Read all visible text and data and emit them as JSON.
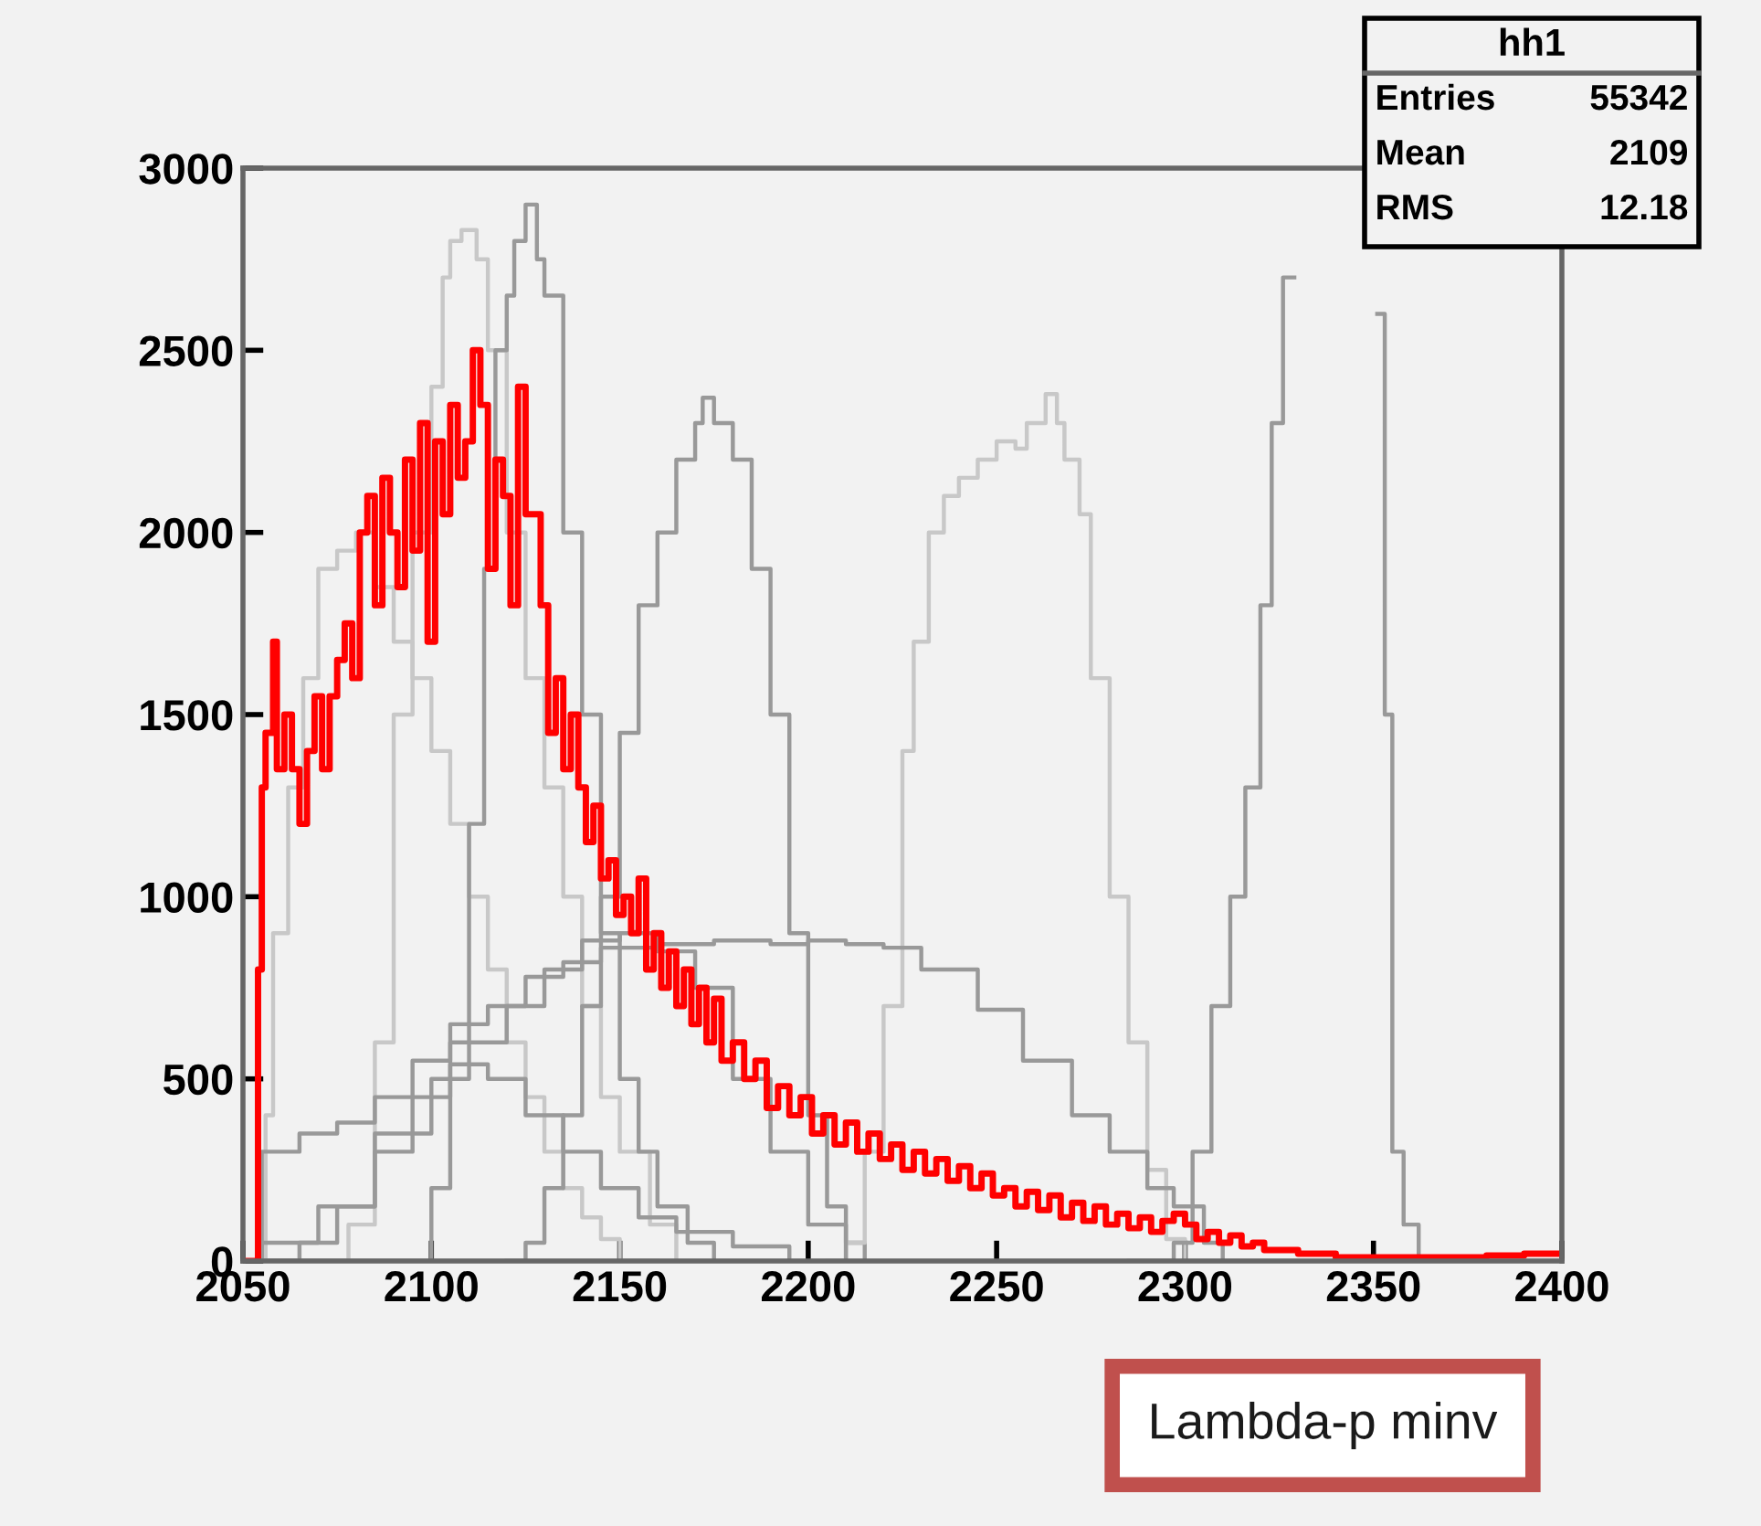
{
  "chart_data": {
    "type": "step",
    "xlim": [
      2050,
      2400
    ],
    "xticks": [
      2050,
      2100,
      2150,
      2200,
      2250,
      2300,
      2350,
      2400
    ],
    "ylim": [
      0,
      3000
    ],
    "yticks": [
      0,
      500,
      1000,
      1500,
      2000,
      2500,
      3000
    ],
    "grid": false,
    "legend": false,
    "annotations": [
      "hh1",
      "Entries 55342",
      "Mean 2109",
      "RMS 12.18",
      "Lambda-p minv"
    ],
    "series": [
      {
        "color": "#c8c8c8",
        "x": [
          2050,
          2054,
          2056,
          2058,
          2062,
          2066,
          2070,
          2075,
          2080,
          2085,
          2090,
          2095,
          2100,
          2105,
          2110,
          2115,
          2120,
          2125,
          2130,
          2135,
          2140,
          2145,
          2150,
          2160
        ],
        "values": [
          0,
          0,
          400,
          900,
          1300,
          1600,
          1900,
          1950,
          2000,
          1850,
          1700,
          1600,
          1400,
          1200,
          1000,
          800,
          600,
          450,
          300,
          200,
          120,
          60,
          0,
          0
        ]
      },
      {
        "color": "#c8c8c8",
        "x": [
          2050,
          2070,
          2078,
          2085,
          2090,
          2095,
          2100,
          2103,
          2105,
          2108,
          2112,
          2115,
          2120,
          2125,
          2130,
          2135,
          2140,
          2145,
          2150,
          2158,
          2165
        ],
        "values": [
          0,
          0,
          100,
          600,
          1500,
          2000,
          2400,
          2700,
          2800,
          2830,
          2750,
          2500,
          2000,
          1600,
          1300,
          1000,
          700,
          450,
          300,
          100,
          0
        ]
      },
      {
        "color": "#999999",
        "x": [
          2050,
          2095,
          2100,
          2105,
          2110,
          2114,
          2117,
          2120,
          2122,
          2125,
          2128,
          2130,
          2135,
          2140,
          2145,
          2150,
          2155,
          2160,
          2168,
          2175
        ],
        "values": [
          0,
          0,
          200,
          600,
          1200,
          1900,
          2500,
          2650,
          2800,
          2900,
          2750,
          2650,
          2000,
          1500,
          900,
          500,
          300,
          150,
          50,
          0
        ]
      },
      {
        "color": "#999999",
        "x": [
          2120,
          2125,
          2130,
          2135,
          2140,
          2145,
          2150,
          2155,
          2160,
          2165,
          2170,
          2172,
          2175,
          2180,
          2185,
          2190,
          2195,
          2200,
          2205,
          2210,
          2215
        ],
        "values": [
          0,
          50,
          200,
          400,
          700,
          1000,
          1450,
          1800,
          2000,
          2200,
          2300,
          2370,
          2300,
          2200,
          1900,
          1500,
          900,
          400,
          150,
          50,
          0
        ]
      },
      {
        "color": "#c8c8c8",
        "x": [
          2205,
          2210,
          2215,
          2220,
          2225,
          2228,
          2232,
          2236,
          2240,
          2245,
          2250,
          2255,
          2258,
          2263,
          2266,
          2268,
          2272,
          2275,
          2280,
          2285,
          2290,
          2295,
          2300
        ],
        "values": [
          0,
          50,
          300,
          700,
          1400,
          1700,
          2000,
          2100,
          2150,
          2200,
          2250,
          2230,
          2300,
          2380,
          2300,
          2200,
          2050,
          1600,
          1000,
          600,
          250,
          60,
          0
        ]
      },
      {
        "color": "#999999",
        "x": [
          2285,
          2290,
          2297,
          2302,
          2307,
          2312,
          2316,
          2320,
          2323,
          2326,
          2329,
          2351,
          2353,
          2355,
          2358,
          2362,
          2400
        ],
        "values": [
          0,
          0,
          50,
          300,
          700,
          1000,
          1300,
          1800,
          2300,
          2700,
          null,
          2600,
          1500,
          300,
          100,
          0,
          0
        ]
      },
      {
        "color": "#999999",
        "x": [
          2050,
          2053,
          2055,
          2065,
          2075,
          2085,
          2095,
          2105,
          2115,
          2125,
          2135,
          2145,
          2160,
          2175,
          2190,
          2200,
          2210,
          2220,
          2230,
          2245,
          2257,
          2270,
          2280,
          2290,
          2297,
          2305,
          2310
        ],
        "values": [
          0,
          0,
          300,
          350,
          380,
          450,
          550,
          650,
          700,
          780,
          820,
          860,
          870,
          880,
          870,
          880,
          870,
          860,
          800,
          690,
          550,
          400,
          300,
          200,
          150,
          50,
          0
        ]
      },
      {
        "color": "#999999",
        "x": [
          2050,
          2055,
          2070,
          2085,
          2100,
          2110,
          2120,
          2130,
          2140,
          2150,
          2160,
          2170,
          2180,
          2190,
          2200,
          2210
        ],
        "values": [
          0,
          50,
          150,
          350,
          500,
          600,
          700,
          800,
          880,
          900,
          850,
          750,
          500,
          300,
          100,
          0
        ]
      },
      {
        "color": "#999999",
        "x": [
          2050,
          2055,
          2065,
          2075,
          2085,
          2095,
          2105,
          2115,
          2125,
          2135,
          2145,
          2155,
          2165,
          2180,
          2195
        ],
        "values": [
          0,
          0,
          50,
          150,
          300,
          450,
          540,
          500,
          400,
          300,
          200,
          120,
          80,
          40,
          0
        ]
      },
      {
        "color": "#ff0000",
        "x": [
          2050,
          2053,
          2054,
          2055,
          2056,
          2058,
          2059,
          2061,
          2063,
          2065,
          2067,
          2069,
          2071,
          2073,
          2075,
          2077,
          2079,
          2081,
          2083,
          2085,
          2087,
          2089,
          2091,
          2093,
          2095,
          2097,
          2099,
          2101,
          2103,
          2105,
          2107,
          2109,
          2111,
          2113,
          2115,
          2117,
          2119,
          2121,
          2123,
          2125,
          2127,
          2129,
          2131,
          2133,
          2135,
          2137,
          2139,
          2141,
          2143,
          2145,
          2147,
          2149,
          2151,
          2153,
          2155,
          2157,
          2159,
          2161,
          2163,
          2165,
          2167,
          2169,
          2171,
          2173,
          2175,
          2177,
          2180,
          2183,
          2186,
          2189,
          2192,
          2195,
          2198,
          2201,
          2204,
          2207,
          2210,
          2213,
          2216,
          2219,
          2222,
          2225,
          2228,
          2231,
          2234,
          2237,
          2240,
          2243,
          2246,
          2249,
          2252,
          2255,
          2258,
          2261,
          2264,
          2267,
          2270,
          2273,
          2276,
          2279,
          2282,
          2285,
          2288,
          2291,
          2294,
          2297,
          2300,
          2303,
          2306,
          2309,
          2312,
          2315,
          2318,
          2321,
          2325,
          2330,
          2340,
          2350,
          2360,
          2370,
          2380,
          2390,
          2400
        ],
        "values": [
          0,
          0,
          800,
          1300,
          1450,
          1700,
          1350,
          1500,
          1350,
          1200,
          1400,
          1550,
          1350,
          1550,
          1650,
          1750,
          1600,
          2000,
          2100,
          1800,
          2150,
          2000,
          1850,
          2200,
          1950,
          2300,
          1700,
          2250,
          2050,
          2350,
          2150,
          2250,
          2500,
          2350,
          1900,
          2200,
          2100,
          1800,
          2400,
          2050,
          2050,
          1800,
          1450,
          1600,
          1350,
          1500,
          1300,
          1150,
          1250,
          1050,
          1100,
          950,
          1000,
          900,
          1050,
          800,
          900,
          750,
          850,
          700,
          800,
          650,
          750,
          600,
          720,
          550,
          600,
          500,
          550,
          420,
          480,
          400,
          450,
          350,
          400,
          320,
          380,
          300,
          350,
          280,
          320,
          250,
          300,
          240,
          280,
          220,
          260,
          200,
          240,
          180,
          200,
          150,
          190,
          140,
          180,
          120,
          160,
          110,
          150,
          100,
          130,
          90,
          120,
          80,
          110,
          130,
          100,
          60,
          80,
          50,
          70,
          40,
          50,
          30,
          30,
          20,
          10,
          10,
          10,
          10,
          15,
          20,
          20
        ]
      }
    ]
  }
}
